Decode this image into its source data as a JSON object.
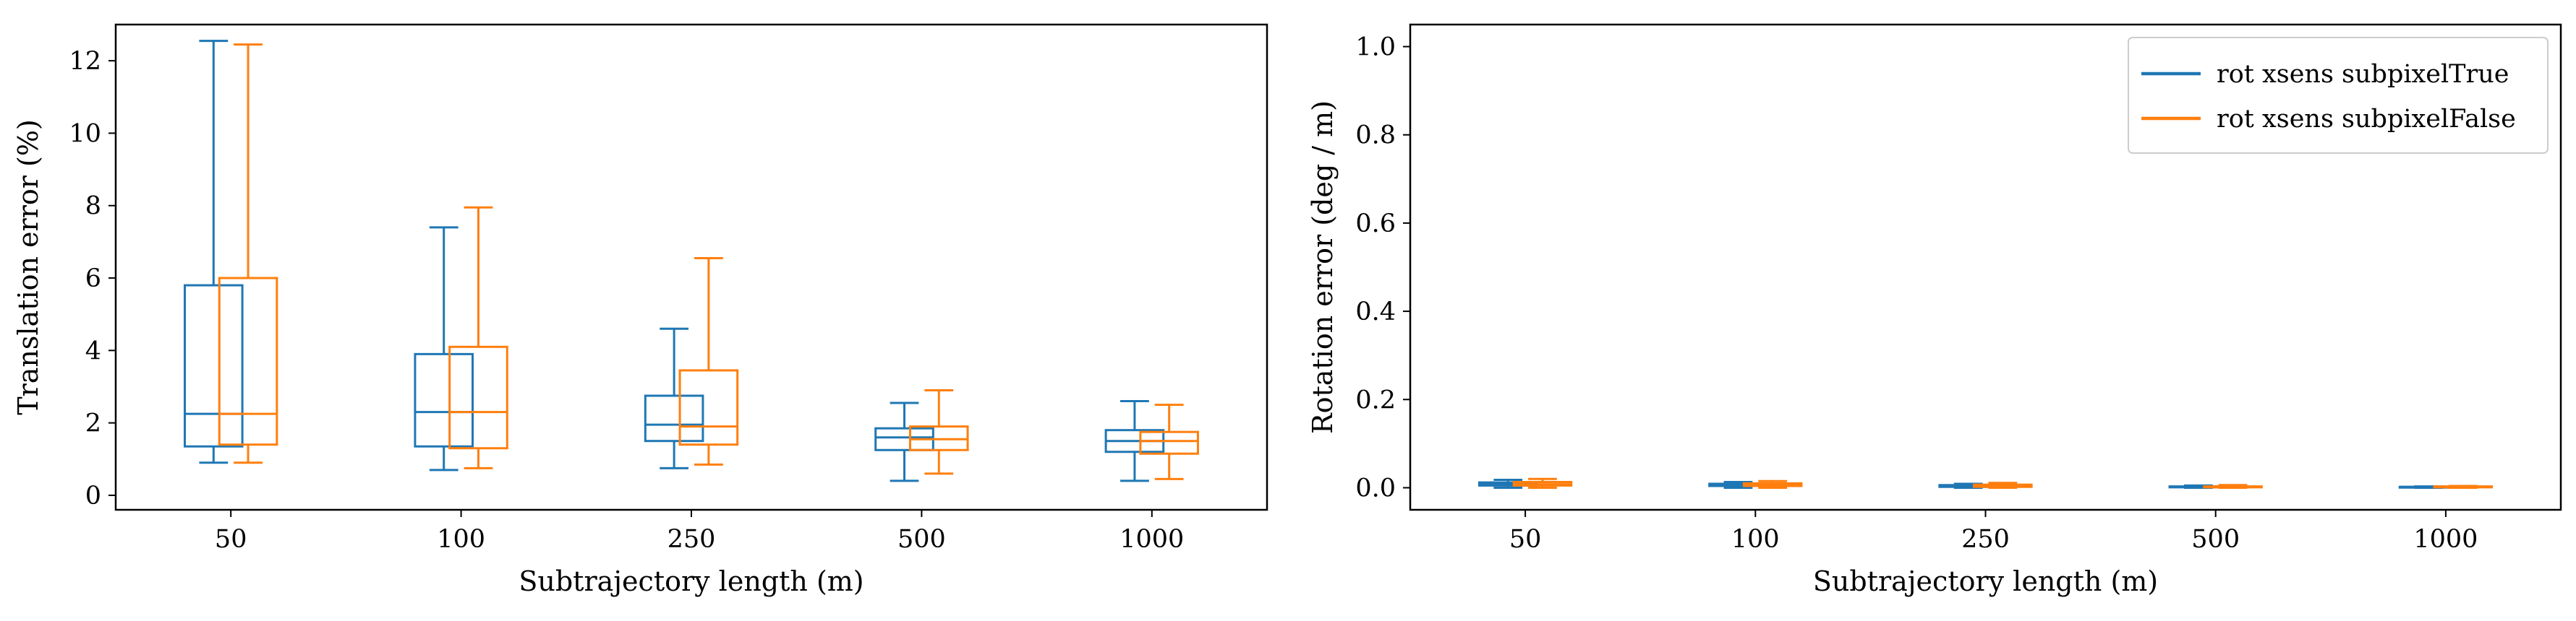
{
  "chart_data": [
    {
      "type": "box",
      "xlabel": "Subtrajectory length (m)",
      "ylabel": "Translation error (%)",
      "categories": [
        "50",
        "100",
        "250",
        "500",
        "1000"
      ],
      "ylim": [
        -0.4,
        13.0
      ],
      "yticks": [
        0,
        2,
        4,
        6,
        8,
        10,
        12
      ],
      "grid": false,
      "series": [
        {
          "name": "rot xsens subpixelTrue",
          "color": "#1f77b4",
          "boxes": [
            {
              "whislo": 0.9,
              "q1": 1.35,
              "med": 2.25,
              "q3": 5.8,
              "whishi": 12.55
            },
            {
              "whislo": 0.7,
              "q1": 1.35,
              "med": 2.3,
              "q3": 3.9,
              "whishi": 7.4
            },
            {
              "whislo": 0.75,
              "q1": 1.5,
              "med": 1.95,
              "q3": 2.75,
              "whishi": 4.6
            },
            {
              "whislo": 0.4,
              "q1": 1.25,
              "med": 1.6,
              "q3": 1.85,
              "whishi": 2.55
            },
            {
              "whislo": 0.4,
              "q1": 1.2,
              "med": 1.5,
              "q3": 1.8,
              "whishi": 2.6
            }
          ]
        },
        {
          "name": "rot xsens subpixelFalse",
          "color": "#ff7f0e",
          "boxes": [
            {
              "whislo": 0.9,
              "q1": 1.4,
              "med": 2.25,
              "q3": 6.0,
              "whishi": 12.45
            },
            {
              "whislo": 0.75,
              "q1": 1.3,
              "med": 2.3,
              "q3": 4.1,
              "whishi": 7.95
            },
            {
              "whislo": 0.85,
              "q1": 1.4,
              "med": 1.9,
              "q3": 3.45,
              "whishi": 6.55
            },
            {
              "whislo": 0.6,
              "q1": 1.25,
              "med": 1.55,
              "q3": 1.9,
              "whishi": 2.9
            },
            {
              "whislo": 0.45,
              "q1": 1.15,
              "med": 1.5,
              "q3": 1.75,
              "whishi": 2.5
            }
          ]
        }
      ]
    },
    {
      "type": "box",
      "xlabel": "Subtrajectory length (m)",
      "ylabel": "Rotation error (deg / m)",
      "categories": [
        "50",
        "100",
        "250",
        "500",
        "1000"
      ],
      "ylim": [
        -0.05,
        1.05
      ],
      "yticks": [
        0.0,
        0.2,
        0.4,
        0.6,
        0.8,
        1.0
      ],
      "ytick_labels": [
        "0.0",
        "0.2",
        "0.4",
        "0.6",
        "0.8",
        "1.0"
      ],
      "grid": false,
      "legend": {
        "position": "upper right",
        "entries": [
          "rot xsens subpixelTrue",
          "rot xsens subpixelFalse"
        ]
      },
      "series": [
        {
          "name": "rot xsens subpixelTrue",
          "color": "#1f77b4",
          "boxes": [
            {
              "whislo": 0.0,
              "q1": 0.005,
              "med": 0.008,
              "q3": 0.012,
              "whishi": 0.018
            },
            {
              "whislo": 0.0,
              "q1": 0.004,
              "med": 0.006,
              "q3": 0.009,
              "whishi": 0.013
            },
            {
              "whislo": 0.0,
              "q1": 0.002,
              "med": 0.004,
              "q3": 0.006,
              "whishi": 0.009
            },
            {
              "whislo": 0.0,
              "q1": 0.001,
              "med": 0.002,
              "q3": 0.003,
              "whishi": 0.005
            },
            {
              "whislo": 0.0,
              "q1": 0.001,
              "med": 0.002,
              "q3": 0.002,
              "whishi": 0.003
            }
          ]
        },
        {
          "name": "rot xsens subpixelFalse",
          "color": "#ff7f0e",
          "boxes": [
            {
              "whislo": 0.0,
              "q1": 0.005,
              "med": 0.008,
              "q3": 0.013,
              "whishi": 0.02
            },
            {
              "whislo": 0.0,
              "q1": 0.004,
              "med": 0.006,
              "q3": 0.01,
              "whishi": 0.015
            },
            {
              "whislo": 0.0,
              "q1": 0.002,
              "med": 0.004,
              "q3": 0.007,
              "whishi": 0.011
            },
            {
              "whislo": 0.0,
              "q1": 0.001,
              "med": 0.002,
              "q3": 0.003,
              "whishi": 0.006
            },
            {
              "whislo": 0.0,
              "q1": 0.001,
              "med": 0.002,
              "q3": 0.003,
              "whishi": 0.004
            }
          ]
        }
      ]
    }
  ]
}
